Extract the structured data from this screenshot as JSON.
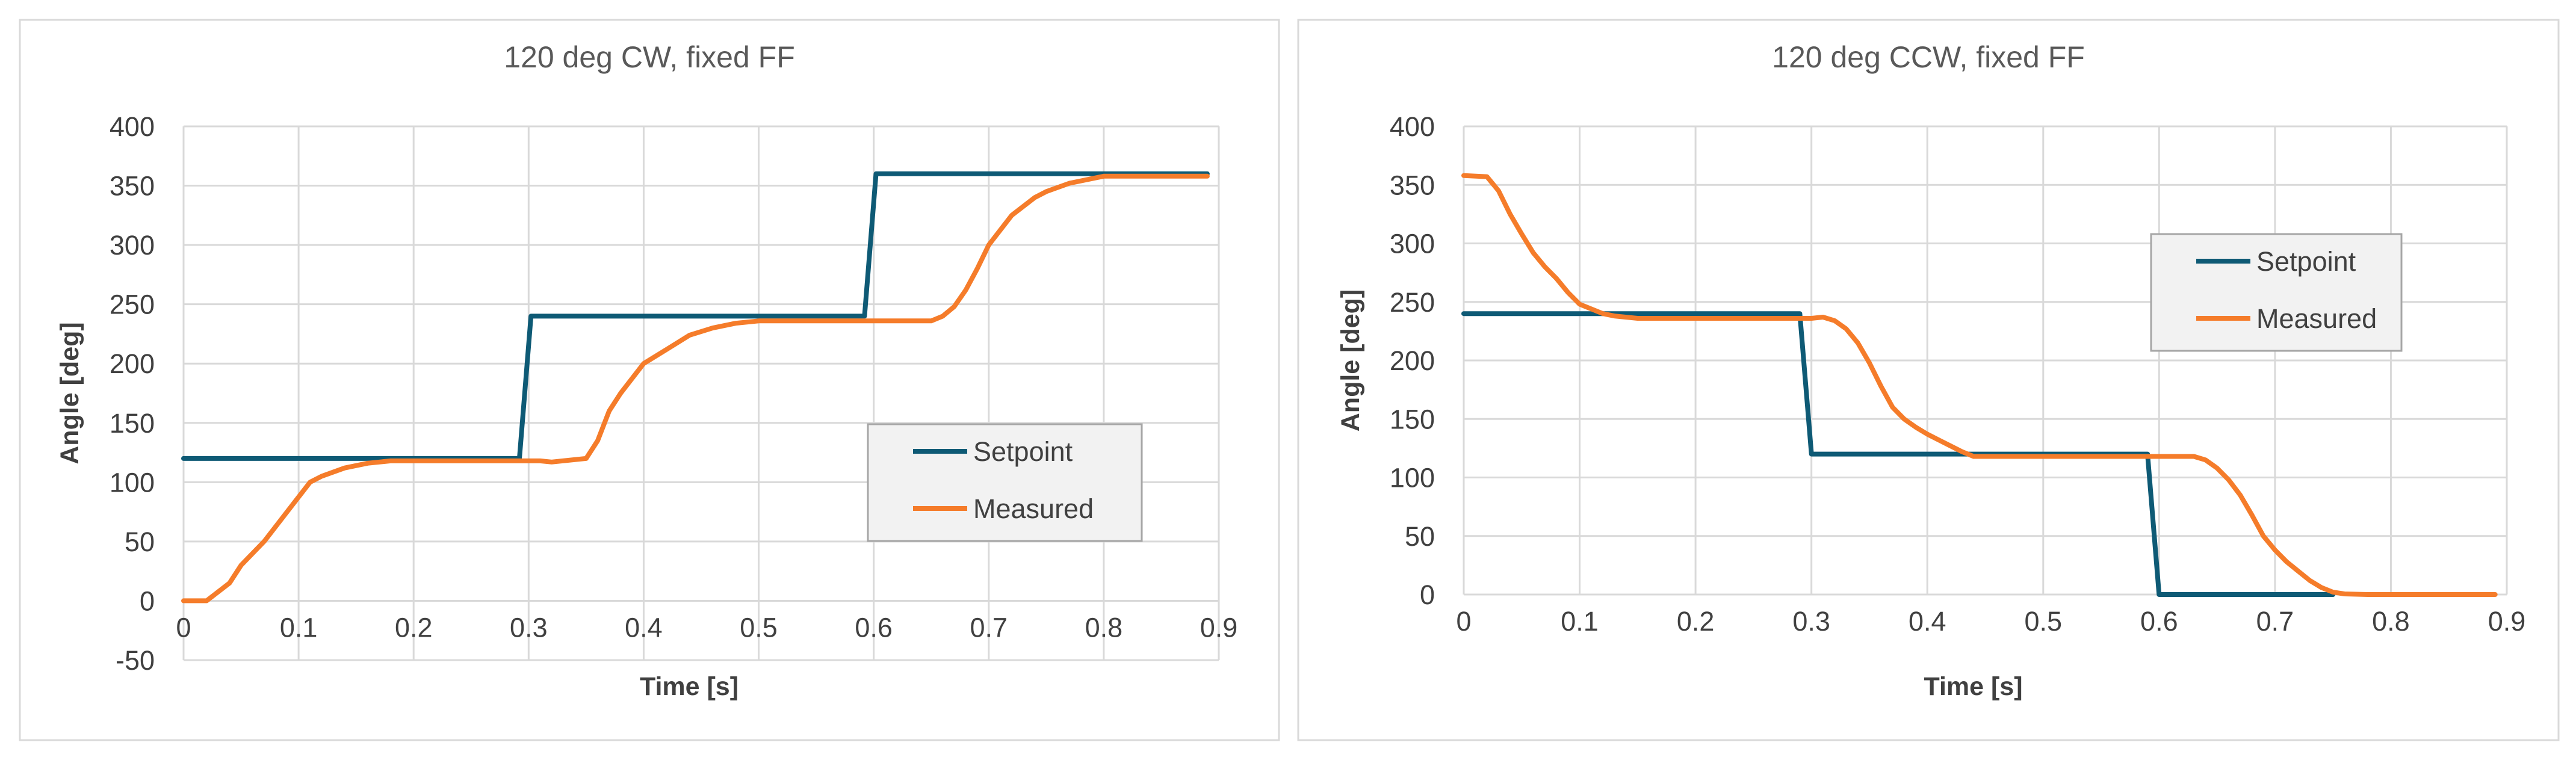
{
  "chart_data": [
    {
      "type": "line",
      "title": "120 deg CW, fixed FF",
      "xlabel": "Time [s]",
      "ylabel": "Angle [deg]",
      "xlim": [
        0,
        0.9
      ],
      "ylim": [
        -50,
        400
      ],
      "x_ticks": [
        "0",
        "0.1",
        "0.2",
        "0.3",
        "0.4",
        "0.5",
        "0.6",
        "0.7",
        "0.8",
        "0.9"
      ],
      "y_ticks": [
        "-50",
        "0",
        "50",
        "100",
        "150",
        "200",
        "250",
        "300",
        "350",
        "400"
      ],
      "grid": true,
      "legend_position": "lower-right",
      "series": [
        {
          "name": "Setpoint",
          "color": "#0E5A75",
          "x": [
            0,
            0.292,
            0.302,
            0.592,
            0.602,
            0.89
          ],
          "y": [
            120,
            120,
            240,
            240,
            360,
            360
          ]
        },
        {
          "name": "Measured",
          "color": "#F57C2A",
          "x": [
            0,
            0.02,
            0.04,
            0.05,
            0.07,
            0.09,
            0.11,
            0.12,
            0.14,
            0.16,
            0.18,
            0.2,
            0.25,
            0.31,
            0.32,
            0.35,
            0.36,
            0.37,
            0.38,
            0.4,
            0.42,
            0.44,
            0.46,
            0.48,
            0.5,
            0.55,
            0.6,
            0.65,
            0.66,
            0.67,
            0.68,
            0.69,
            0.7,
            0.72,
            0.74,
            0.75,
            0.77,
            0.8,
            0.85,
            0.89
          ],
          "y": [
            0,
            0,
            15,
            30,
            50,
            75,
            100,
            105,
            112,
            116,
            118,
            118,
            118,
            118,
            117,
            120,
            135,
            160,
            175,
            200,
            212,
            224,
            230,
            234,
            236,
            236,
            236,
            236,
            240,
            248,
            262,
            280,
            300,
            325,
            340,
            345,
            352,
            358,
            358,
            358
          ]
        }
      ]
    },
    {
      "type": "line",
      "title": "120 deg CCW, fixed FF",
      "xlabel": "Time [s]",
      "ylabel": "Angle [deg]",
      "xlim": [
        0,
        0.9
      ],
      "ylim": [
        0,
        400
      ],
      "x_ticks": [
        "0",
        "0.1",
        "0.2",
        "0.3",
        "0.4",
        "0.5",
        "0.6",
        "0.7",
        "0.8",
        "0.9"
      ],
      "y_ticks": [
        "0",
        "50",
        "100",
        "150",
        "200",
        "250",
        "300",
        "350",
        "400"
      ],
      "grid": true,
      "legend_position": "top-right",
      "series": [
        {
          "name": "Setpoint",
          "color": "#0E5A75",
          "x": [
            0,
            0.29,
            0.3,
            0.59,
            0.6,
            0.75
          ],
          "y": [
            240,
            240,
            120,
            120,
            0,
            0
          ]
        },
        {
          "name": "Measured",
          "color": "#F57C2A",
          "x": [
            0,
            0.02,
            0.03,
            0.04,
            0.05,
            0.06,
            0.07,
            0.08,
            0.09,
            0.1,
            0.12,
            0.13,
            0.15,
            0.2,
            0.25,
            0.3,
            0.31,
            0.32,
            0.33,
            0.34,
            0.35,
            0.36,
            0.37,
            0.38,
            0.39,
            0.4,
            0.41,
            0.42,
            0.43,
            0.44,
            0.45,
            0.5,
            0.55,
            0.6,
            0.63,
            0.64,
            0.65,
            0.66,
            0.67,
            0.68,
            0.69,
            0.7,
            0.71,
            0.72,
            0.73,
            0.74,
            0.75,
            0.76,
            0.78,
            0.8,
            0.85,
            0.89
          ],
          "y": [
            358,
            357,
            345,
            325,
            308,
            292,
            280,
            270,
            258,
            248,
            240,
            238,
            236,
            236,
            236,
            236,
            237,
            234,
            227,
            215,
            198,
            178,
            160,
            150,
            143,
            137,
            132,
            127,
            122,
            118,
            118,
            118,
            118,
            118,
            118,
            115,
            108,
            98,
            85,
            68,
            50,
            38,
            28,
            20,
            12,
            6,
            2,
            0.5,
            0,
            0,
            0,
            0
          ]
        }
      ]
    }
  ]
}
